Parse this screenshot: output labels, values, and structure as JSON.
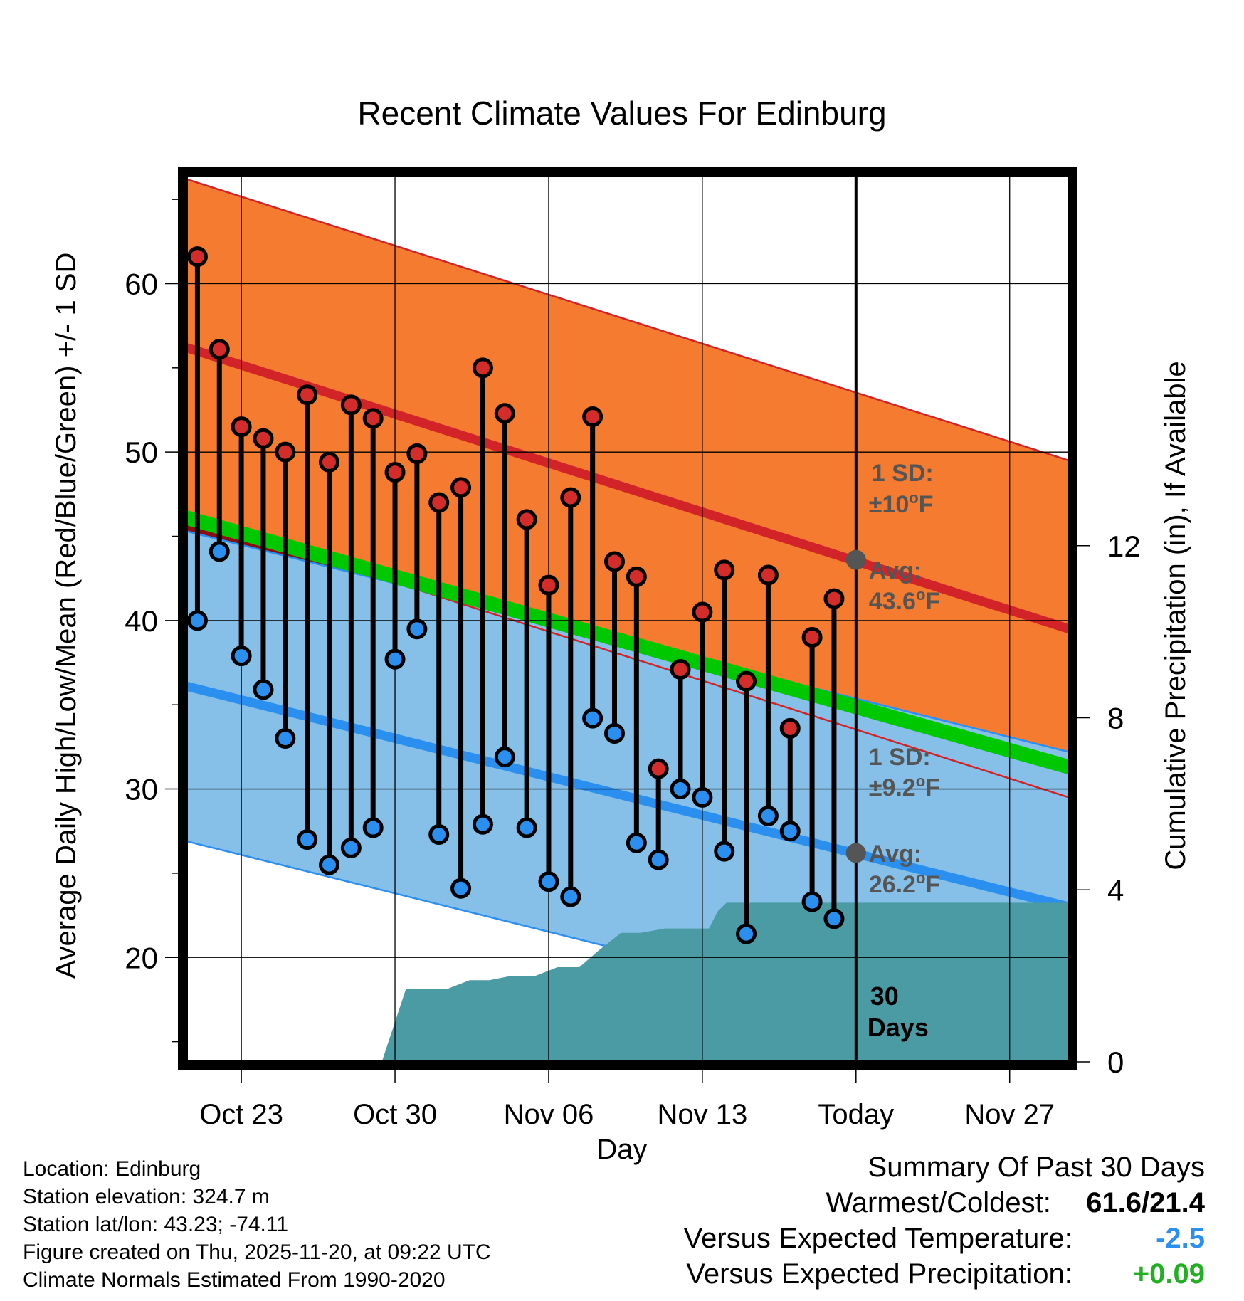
{
  "chart_data": {
    "type": "line",
    "title": "Recent Climate Values For Edinburg",
    "xlabel": "Day",
    "ylabel_left": "Average Daily High/Low/Mean (Red/Blue/Green) +/- 1 SD",
    "ylabel_right": "Cumulative Precipitation (in), If Available",
    "x_tick_labels": [
      "Oct 23",
      "Oct 30",
      "Nov 06",
      "Nov 13",
      "Today",
      "Nov 27"
    ],
    "x_tick_days": [
      3,
      10,
      17,
      24,
      31,
      38
    ],
    "x_range_days": [
      0.5,
      40.7
    ],
    "y_ticks_left": [
      20,
      30,
      40,
      50,
      60
    ],
    "y_range_left": [
      13.8,
      66.4
    ],
    "y_ticks_right": [
      0,
      4,
      8,
      12
    ],
    "y_range_right": [
      0,
      20.6
    ],
    "today_day": 31,
    "days": [
      1,
      2,
      3,
      4,
      5,
      6,
      7,
      8,
      9,
      10,
      11,
      12,
      13,
      14,
      15,
      16,
      17,
      18,
      19,
      20,
      21,
      22,
      23,
      24,
      25,
      26,
      27,
      28,
      29,
      30
    ],
    "daily_high": [
      61.6,
      56.1,
      51.5,
      50.8,
      50.0,
      53.4,
      49.4,
      52.8,
      52.0,
      48.8,
      49.9,
      47.0,
      47.9,
      55.0,
      52.3,
      46.0,
      42.1,
      47.3,
      52.1,
      43.5,
      42.6,
      31.2,
      37.1,
      40.5,
      43.0,
      36.4,
      42.7,
      33.6,
      39.0,
      41.3
    ],
    "daily_low": [
      40.0,
      44.1,
      37.9,
      35.9,
      33.0,
      27.0,
      25.5,
      26.5,
      27.7,
      37.7,
      39.5,
      27.3,
      24.1,
      27.9,
      31.9,
      27.7,
      24.5,
      23.6,
      34.2,
      33.3,
      26.8,
      25.8,
      30.0,
      29.5,
      26.3,
      21.4,
      28.4,
      27.5,
      23.3,
      22.3
    ],
    "normal_high": {
      "start": 56.2,
      "end": 39.5
    },
    "normal_high_sd": 10,
    "normal_low": {
      "start": 36.1,
      "end": 23.0
    },
    "normal_low_sd": 9.2,
    "normal_mean": {
      "start": 46.1,
      "end": 31.3
    },
    "cumulative_precip_days": [
      0.5,
      9.4,
      10.5,
      11.4,
      12.4,
      13.4,
      14.3,
      15.3,
      16.4,
      17.4,
      18.4,
      19.3,
      20.3,
      21.2,
      22.3,
      23.4,
      24.3,
      24.7,
      25.1,
      25.9,
      26.8,
      40.7
    ],
    "cumulative_precip_values": [
      0,
      0,
      1.7,
      1.7,
      1.7,
      1.9,
      1.9,
      2.0,
      2.0,
      2.2,
      2.2,
      2.6,
      3.0,
      3.0,
      3.1,
      3.1,
      3.1,
      3.5,
      3.7,
      3.7,
      3.7,
      3.7
    ],
    "annotations": {
      "high_sd": "1 SD:",
      "high_sd_value": "±10",
      "high_avg": "Avg:",
      "high_avg_value": "43.6",
      "low_sd": "1 SD:",
      "low_sd_value": "±9.2",
      "low_avg": "Avg:",
      "low_avg_value": "26.2",
      "degree_symbol": "o",
      "unit_f": "F",
      "window_days": "30",
      "window_label": "Days"
    },
    "colors": {
      "high_band": "#f47b2f",
      "high_line": "#d22328",
      "low_band": "#86c0e8",
      "low_line": "#2b8fef",
      "mean_band": "#00c800",
      "precip": "#4a9ba4",
      "overlap": "#8b0e14",
      "annotation": "#555555",
      "high_marker": "#d42b2b",
      "low_marker": "#2b8fef"
    }
  },
  "info": {
    "location": "Location: Edinburg",
    "elevation": "Station elevation: 324.7 m",
    "latlon": "Station lat/lon: 43.23; -74.11",
    "created": "Figure created on Thu, 2025-11-20, at 09:22 UTC",
    "normals": "Climate Normals Estimated From 1990-2020"
  },
  "summary": {
    "title": "Summary Of Past 30 Days",
    "warmest_label": "Warmest/Coldest:",
    "warmest_value": "61.6/21.4",
    "temp_label": "Versus Expected Temperature:",
    "temp_value": "-2.5",
    "temp_color": "#2b8fef",
    "precip_label": "Versus Expected Precipitation:",
    "precip_value": "+0.09",
    "precip_color": "#22b022"
  }
}
